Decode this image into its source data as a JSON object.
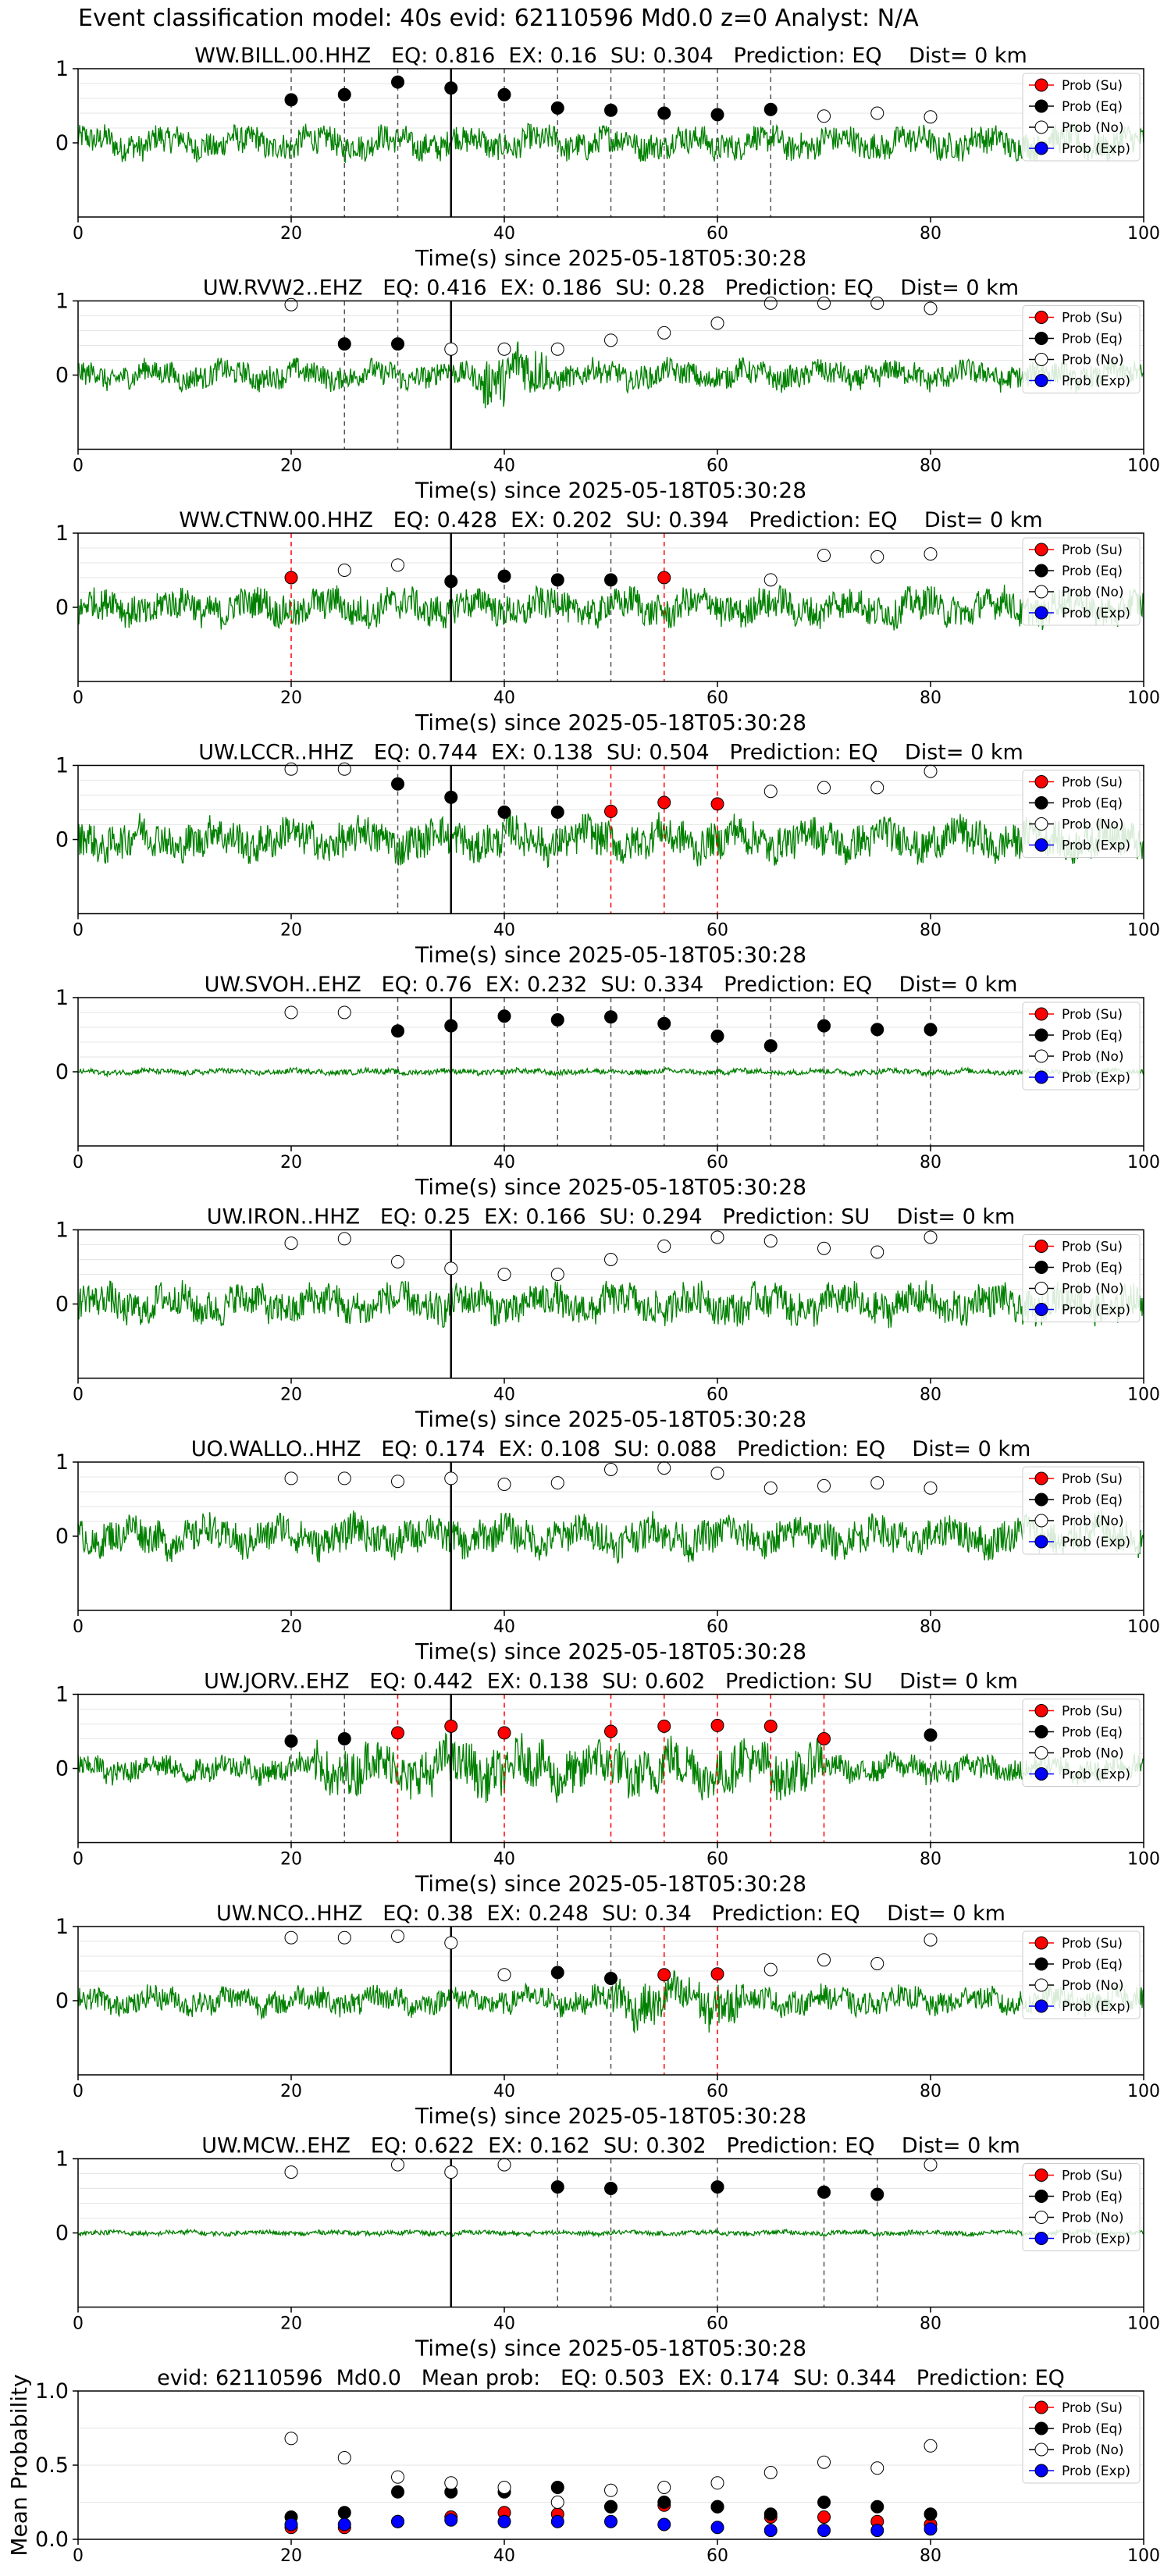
{
  "figure": {
    "suptitle": "Event classification model: 40s evid: 62110596 Md0.0 z=0 Analyst: N/A",
    "xlabel": "Time(s) since 2025-05-18T05:30:28",
    "legend": [
      "Prob (Su)",
      "Prob (Eq)",
      "Prob (No)",
      "Prob (Exp)"
    ],
    "colors": {
      "su": "#ff0000",
      "eq": "#000000",
      "no": "#ffffff",
      "exp": "#0000ff",
      "waveform": "#008000"
    }
  },
  "chart_data": [
    {
      "type": "scatter",
      "title": "WW.BILL.00.HHZ   EQ: 0.816  EX: 0.16  SU: 0.304   Prediction: EQ    Dist= 0 km",
      "xlim": [
        0,
        100
      ],
      "ylim": [
        -1,
        1
      ],
      "xticks": [
        0,
        20,
        40,
        60,
        80,
        100
      ],
      "yticks": [
        0,
        1
      ],
      "origin_line_x": 35,
      "waveform_amp": 0.6,
      "points": [
        [
          20,
          0.58,
          "eq"
        ],
        [
          25,
          0.65,
          "eq"
        ],
        [
          30,
          0.82,
          "eq"
        ],
        [
          35,
          0.74,
          "eq"
        ],
        [
          40,
          0.65,
          "eq"
        ],
        [
          45,
          0.47,
          "eq"
        ],
        [
          50,
          0.44,
          "eq"
        ],
        [
          55,
          0.4,
          "eq"
        ],
        [
          60,
          0.38,
          "eq"
        ],
        [
          65,
          0.45,
          "eq"
        ],
        [
          70,
          0.36,
          "no"
        ],
        [
          75,
          0.4,
          "no"
        ],
        [
          80,
          0.35,
          "no"
        ]
      ]
    },
    {
      "type": "scatter",
      "title": "UW.RVW2..EHZ   EQ: 0.416  EX: 0.186  SU: 0.28   Prediction: EQ    Dist= 0 km",
      "xlim": [
        0,
        100
      ],
      "ylim": [
        -1,
        1
      ],
      "xticks": [
        0,
        20,
        40,
        60,
        80,
        100
      ],
      "yticks": [
        0,
        1
      ],
      "origin_line_x": 35,
      "waveform_amp": 0.5,
      "points": [
        [
          20,
          0.95,
          "no"
        ],
        [
          25,
          0.42,
          "eq"
        ],
        [
          30,
          0.42,
          "eq"
        ],
        [
          35,
          0.35,
          "no"
        ],
        [
          40,
          0.35,
          "no"
        ],
        [
          45,
          0.35,
          "no"
        ],
        [
          50,
          0.47,
          "no"
        ],
        [
          55,
          0.57,
          "no"
        ],
        [
          60,
          0.7,
          "no"
        ],
        [
          65,
          0.97,
          "no"
        ],
        [
          70,
          0.97,
          "no"
        ],
        [
          75,
          0.97,
          "no"
        ],
        [
          80,
          0.9,
          "no"
        ]
      ]
    },
    {
      "type": "scatter",
      "title": "WW.CTNW.00.HHZ   EQ: 0.428  EX: 0.202  SU: 0.394   Prediction: EQ    Dist= 0 km",
      "xlim": [
        0,
        100
      ],
      "ylim": [
        -1,
        1
      ],
      "xticks": [
        0,
        20,
        40,
        60,
        80,
        100
      ],
      "yticks": [
        0,
        1
      ],
      "origin_line_x": 35,
      "waveform_amp": 0.7,
      "points": [
        [
          20,
          0.4,
          "su"
        ],
        [
          25,
          0.5,
          "no"
        ],
        [
          30,
          0.57,
          "no"
        ],
        [
          35,
          0.35,
          "eq"
        ],
        [
          40,
          0.42,
          "eq"
        ],
        [
          45,
          0.37,
          "eq"
        ],
        [
          50,
          0.37,
          "eq"
        ],
        [
          55,
          0.4,
          "su"
        ],
        [
          65,
          0.37,
          "no"
        ],
        [
          70,
          0.7,
          "no"
        ],
        [
          75,
          0.68,
          "no"
        ],
        [
          80,
          0.72,
          "no"
        ]
      ]
    },
    {
      "type": "scatter",
      "title": "UW.LCCR..HHZ   EQ: 0.744  EX: 0.138  SU: 0.504   Prediction: EQ    Dist= 0 km",
      "xlim": [
        0,
        100
      ],
      "ylim": [
        -1,
        1
      ],
      "xticks": [
        0,
        20,
        40,
        60,
        80,
        100
      ],
      "yticks": [
        0,
        1
      ],
      "origin_line_x": 35,
      "waveform_amp": 0.8,
      "points": [
        [
          20,
          0.95,
          "no"
        ],
        [
          25,
          0.95,
          "no"
        ],
        [
          30,
          0.75,
          "eq"
        ],
        [
          35,
          0.57,
          "eq"
        ],
        [
          40,
          0.37,
          "eq"
        ],
        [
          45,
          0.37,
          "eq"
        ],
        [
          50,
          0.38,
          "su"
        ],
        [
          55,
          0.5,
          "su"
        ],
        [
          60,
          0.48,
          "su"
        ],
        [
          65,
          0.65,
          "no"
        ],
        [
          70,
          0.7,
          "no"
        ],
        [
          75,
          0.7,
          "no"
        ],
        [
          80,
          0.92,
          "no"
        ]
      ]
    },
    {
      "type": "scatter",
      "title": "UW.SVOH..EHZ   EQ: 0.76  EX: 0.232  SU: 0.334   Prediction: EQ    Dist= 0 km",
      "xlim": [
        0,
        100
      ],
      "ylim": [
        -1,
        1
      ],
      "xticks": [
        0,
        20,
        40,
        60,
        80,
        100
      ],
      "yticks": [
        0,
        1
      ],
      "origin_line_x": 35,
      "waveform_amp": 0.06,
      "points": [
        [
          20,
          0.8,
          "no"
        ],
        [
          25,
          0.8,
          "no"
        ],
        [
          30,
          0.55,
          "eq"
        ],
        [
          35,
          0.62,
          "eq"
        ],
        [
          40,
          0.75,
          "eq"
        ],
        [
          45,
          0.7,
          "eq"
        ],
        [
          50,
          0.74,
          "eq"
        ],
        [
          55,
          0.65,
          "eq"
        ],
        [
          60,
          0.48,
          "eq"
        ],
        [
          65,
          0.35,
          "eq"
        ],
        [
          70,
          0.62,
          "eq"
        ],
        [
          75,
          0.57,
          "eq"
        ],
        [
          80,
          0.57,
          "eq"
        ]
      ]
    },
    {
      "type": "scatter",
      "title": "UW.IRON..HHZ   EQ: 0.25  EX: 0.166  SU: 0.294   Prediction: SU    Dist= 0 km",
      "xlim": [
        0,
        100
      ],
      "ylim": [
        -1,
        1
      ],
      "xticks": [
        0,
        20,
        40,
        60,
        80,
        100
      ],
      "yticks": [
        0,
        1
      ],
      "origin_line_x": 35,
      "waveform_amp": 0.75,
      "points": [
        [
          20,
          0.82,
          "no"
        ],
        [
          25,
          0.88,
          "no"
        ],
        [
          30,
          0.57,
          "no"
        ],
        [
          35,
          0.48,
          "no"
        ],
        [
          40,
          0.4,
          "no"
        ],
        [
          45,
          0.4,
          "no"
        ],
        [
          50,
          0.6,
          "no"
        ],
        [
          55,
          0.78,
          "no"
        ],
        [
          60,
          0.9,
          "no"
        ],
        [
          65,
          0.85,
          "no"
        ],
        [
          70,
          0.75,
          "no"
        ],
        [
          75,
          0.7,
          "no"
        ],
        [
          80,
          0.9,
          "no"
        ]
      ]
    },
    {
      "type": "scatter",
      "title": "UO.WALLO..HHZ   EQ: 0.174  EX: 0.108  SU: 0.088   Prediction: EQ    Dist= 0 km",
      "xlim": [
        0,
        100
      ],
      "ylim": [
        -1,
        1
      ],
      "xticks": [
        0,
        20,
        40,
        60,
        80,
        100
      ],
      "yticks": [
        0,
        1
      ],
      "origin_line_x": 35,
      "waveform_amp": 0.75,
      "points": [
        [
          20,
          0.78,
          "no"
        ],
        [
          25,
          0.78,
          "no"
        ],
        [
          30,
          0.74,
          "no"
        ],
        [
          35,
          0.78,
          "no"
        ],
        [
          40,
          0.7,
          "no"
        ],
        [
          45,
          0.72,
          "no"
        ],
        [
          50,
          0.9,
          "no"
        ],
        [
          55,
          0.92,
          "no"
        ],
        [
          60,
          0.85,
          "no"
        ],
        [
          65,
          0.65,
          "no"
        ],
        [
          70,
          0.68,
          "no"
        ],
        [
          75,
          0.72,
          "no"
        ],
        [
          80,
          0.65,
          "no"
        ]
      ]
    },
    {
      "type": "scatter",
      "title": "UW.JORV..EHZ   EQ: 0.442  EX: 0.138  SU: 0.602   Prediction: SU    Dist= 0 km",
      "xlim": [
        0,
        100
      ],
      "ylim": [
        -1,
        1
      ],
      "xticks": [
        0,
        20,
        40,
        60,
        80,
        100
      ],
      "yticks": [
        0,
        1
      ],
      "origin_line_x": 35,
      "waveform_amp": 0.5,
      "points": [
        [
          20,
          0.37,
          "eq"
        ],
        [
          25,
          0.4,
          "eq"
        ],
        [
          30,
          0.48,
          "su"
        ],
        [
          35,
          0.57,
          "su"
        ],
        [
          40,
          0.48,
          "su"
        ],
        [
          50,
          0.5,
          "su"
        ],
        [
          55,
          0.57,
          "su"
        ],
        [
          60,
          0.58,
          "su"
        ],
        [
          65,
          0.57,
          "su"
        ],
        [
          70,
          0.4,
          "su"
        ],
        [
          80,
          0.45,
          "eq"
        ]
      ]
    },
    {
      "type": "scatter",
      "title": "UW.NCO..HHZ   EQ: 0.38  EX: 0.248  SU: 0.34   Prediction: EQ    Dist= 0 km",
      "xlim": [
        0,
        100
      ],
      "ylim": [
        -1,
        1
      ],
      "xticks": [
        0,
        20,
        40,
        60,
        80,
        100
      ],
      "yticks": [
        0,
        1
      ],
      "origin_line_x": 35,
      "waveform_amp": 0.5,
      "points": [
        [
          20,
          0.85,
          "no"
        ],
        [
          25,
          0.85,
          "no"
        ],
        [
          30,
          0.87,
          "no"
        ],
        [
          35,
          0.78,
          "no"
        ],
        [
          40,
          0.35,
          "no"
        ],
        [
          45,
          0.38,
          "eq"
        ],
        [
          50,
          0.3,
          "eq"
        ],
        [
          55,
          0.35,
          "su"
        ],
        [
          60,
          0.36,
          "su"
        ],
        [
          65,
          0.42,
          "no"
        ],
        [
          70,
          0.55,
          "no"
        ],
        [
          75,
          0.5,
          "no"
        ],
        [
          80,
          0.82,
          "no"
        ]
      ]
    },
    {
      "type": "scatter",
      "title": "UW.MCW..EHZ   EQ: 0.622  EX: 0.162  SU: 0.302   Prediction: EQ    Dist= 0 km",
      "xlim": [
        0,
        100
      ],
      "ylim": [
        -1,
        1
      ],
      "xticks": [
        0,
        20,
        40,
        60,
        80,
        100
      ],
      "yticks": [
        0,
        1
      ],
      "origin_line_x": 35,
      "waveform_amp": 0.04,
      "points": [
        [
          20,
          0.82,
          "no"
        ],
        [
          30,
          0.92,
          "no"
        ],
        [
          35,
          0.82,
          "no"
        ],
        [
          40,
          0.92,
          "no"
        ],
        [
          45,
          0.62,
          "eq"
        ],
        [
          50,
          0.6,
          "eq"
        ],
        [
          60,
          0.62,
          "eq"
        ],
        [
          70,
          0.55,
          "eq"
        ],
        [
          75,
          0.52,
          "eq"
        ],
        [
          80,
          0.92,
          "no"
        ]
      ]
    },
    {
      "type": "scatter",
      "title": "evid: 62110596  Md0.0   Mean prob:   EQ: 0.503  EX: 0.174  SU: 0.344   Prediction: EQ",
      "ylabel": "Mean Probability",
      "xlim": [
        0,
        100
      ],
      "ylim": [
        0,
        1
      ],
      "xticks": [
        0,
        20,
        40,
        60,
        80,
        100
      ],
      "yticks": [
        0.0,
        0.5,
        1.0
      ],
      "series": [
        {
          "name": "Prob (Su)",
          "x": [
            20,
            25,
            30,
            35,
            40,
            45,
            50,
            55,
            60,
            65,
            70,
            75,
            80
          ],
          "y": [
            0.08,
            0.08,
            0.12,
            0.15,
            0.18,
            0.17,
            0.22,
            0.23,
            0.22,
            0.15,
            0.15,
            0.12,
            0.1
          ]
        },
        {
          "name": "Prob (Eq)",
          "x": [
            20,
            25,
            30,
            35,
            40,
            45,
            50,
            55,
            60,
            65,
            70,
            75,
            80
          ],
          "y": [
            0.15,
            0.18,
            0.32,
            0.32,
            0.32,
            0.35,
            0.22,
            0.25,
            0.22,
            0.17,
            0.25,
            0.22,
            0.17
          ]
        },
        {
          "name": "Prob (No)",
          "x": [
            20,
            25,
            30,
            35,
            40,
            45,
            50,
            55,
            60,
            65,
            70,
            75,
            80
          ],
          "y": [
            0.68,
            0.55,
            0.42,
            0.38,
            0.35,
            0.25,
            0.33,
            0.35,
            0.38,
            0.45,
            0.52,
            0.48,
            0.63
          ]
        },
        {
          "name": "Prob (Exp)",
          "x": [
            20,
            25,
            30,
            35,
            40,
            45,
            50,
            55,
            60,
            65,
            70,
            75,
            80
          ],
          "y": [
            0.1,
            0.1,
            0.12,
            0.13,
            0.12,
            0.12,
            0.12,
            0.1,
            0.08,
            0.06,
            0.06,
            0.06,
            0.07
          ]
        }
      ]
    }
  ]
}
